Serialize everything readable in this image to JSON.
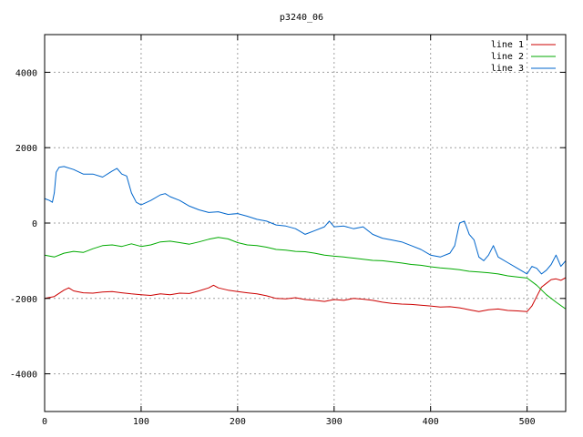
{
  "chart_data": {
    "type": "line",
    "title": "p3240_06",
    "xlabel": "",
    "ylabel": "",
    "xlim": [
      0,
      540
    ],
    "ylim": [
      -5000,
      5000
    ],
    "x_ticks": [
      "0",
      "100",
      "200",
      "300",
      "400",
      "500"
    ],
    "y_ticks": [
      "-4000",
      "-2000",
      "0",
      "2000",
      "4000"
    ],
    "grid": true,
    "legend_position": "top-right",
    "series": [
      {
        "name": "line 1",
        "color": "#cc0000",
        "points": [
          [
            0,
            -2000
          ],
          [
            10,
            -1950
          ],
          [
            20,
            -1780
          ],
          [
            25,
            -1720
          ],
          [
            30,
            -1800
          ],
          [
            40,
            -1850
          ],
          [
            50,
            -1860
          ],
          [
            60,
            -1830
          ],
          [
            70,
            -1820
          ],
          [
            80,
            -1850
          ],
          [
            90,
            -1880
          ],
          [
            100,
            -1900
          ],
          [
            110,
            -1920
          ],
          [
            120,
            -1880
          ],
          [
            130,
            -1900
          ],
          [
            140,
            -1860
          ],
          [
            150,
            -1870
          ],
          [
            160,
            -1800
          ],
          [
            170,
            -1720
          ],
          [
            175,
            -1650
          ],
          [
            180,
            -1720
          ],
          [
            190,
            -1780
          ],
          [
            200,
            -1820
          ],
          [
            210,
            -1850
          ],
          [
            220,
            -1880
          ],
          [
            230,
            -1930
          ],
          [
            240,
            -2000
          ],
          [
            250,
            -2010
          ],
          [
            260,
            -1980
          ],
          [
            270,
            -2030
          ],
          [
            280,
            -2050
          ],
          [
            290,
            -2080
          ],
          [
            300,
            -2030
          ],
          [
            310,
            -2050
          ],
          [
            320,
            -2000
          ],
          [
            330,
            -2020
          ],
          [
            340,
            -2050
          ],
          [
            350,
            -2100
          ],
          [
            360,
            -2130
          ],
          [
            370,
            -2150
          ],
          [
            380,
            -2160
          ],
          [
            390,
            -2180
          ],
          [
            400,
            -2200
          ],
          [
            410,
            -2230
          ],
          [
            420,
            -2220
          ],
          [
            430,
            -2250
          ],
          [
            440,
            -2300
          ],
          [
            450,
            -2350
          ],
          [
            460,
            -2300
          ],
          [
            470,
            -2280
          ],
          [
            480,
            -2320
          ],
          [
            490,
            -2330
          ],
          [
            500,
            -2350
          ],
          [
            505,
            -2200
          ],
          [
            510,
            -1950
          ],
          [
            515,
            -1700
          ],
          [
            520,
            -1600
          ],
          [
            525,
            -1500
          ],
          [
            530,
            -1480
          ],
          [
            535,
            -1520
          ],
          [
            540,
            -1450
          ]
        ]
      },
      {
        "name": "line 2",
        "color": "#00aa00",
        "points": [
          [
            0,
            -850
          ],
          [
            10,
            -900
          ],
          [
            20,
            -800
          ],
          [
            30,
            -750
          ],
          [
            40,
            -780
          ],
          [
            50,
            -680
          ],
          [
            60,
            -600
          ],
          [
            70,
            -580
          ],
          [
            80,
            -620
          ],
          [
            90,
            -550
          ],
          [
            100,
            -620
          ],
          [
            110,
            -580
          ],
          [
            120,
            -500
          ],
          [
            130,
            -480
          ],
          [
            140,
            -520
          ],
          [
            150,
            -560
          ],
          [
            160,
            -500
          ],
          [
            170,
            -430
          ],
          [
            180,
            -380
          ],
          [
            190,
            -420
          ],
          [
            200,
            -520
          ],
          [
            210,
            -580
          ],
          [
            220,
            -600
          ],
          [
            230,
            -640
          ],
          [
            240,
            -700
          ],
          [
            250,
            -720
          ],
          [
            260,
            -750
          ],
          [
            270,
            -760
          ],
          [
            280,
            -800
          ],
          [
            290,
            -850
          ],
          [
            300,
            -880
          ],
          [
            310,
            -900
          ],
          [
            320,
            -930
          ],
          [
            330,
            -960
          ],
          [
            340,
            -990
          ],
          [
            350,
            -1000
          ],
          [
            360,
            -1030
          ],
          [
            370,
            -1060
          ],
          [
            380,
            -1100
          ],
          [
            390,
            -1120
          ],
          [
            400,
            -1160
          ],
          [
            410,
            -1190
          ],
          [
            420,
            -1210
          ],
          [
            430,
            -1240
          ],
          [
            440,
            -1280
          ],
          [
            450,
            -1300
          ],
          [
            460,
            -1320
          ],
          [
            470,
            -1350
          ],
          [
            480,
            -1400
          ],
          [
            490,
            -1430
          ],
          [
            500,
            -1460
          ],
          [
            510,
            -1650
          ],
          [
            520,
            -1900
          ],
          [
            530,
            -2100
          ],
          [
            540,
            -2280
          ]
        ]
      },
      {
        "name": "line 3",
        "color": "#0066cc",
        "points": [
          [
            0,
            650
          ],
          [
            5,
            600
          ],
          [
            8,
            550
          ],
          [
            10,
            800
          ],
          [
            12,
            1350
          ],
          [
            15,
            1480
          ],
          [
            20,
            1500
          ],
          [
            30,
            1420
          ],
          [
            40,
            1300
          ],
          [
            50,
            1300
          ],
          [
            60,
            1220
          ],
          [
            70,
            1380
          ],
          [
            75,
            1450
          ],
          [
            80,
            1300
          ],
          [
            85,
            1250
          ],
          [
            90,
            800
          ],
          [
            95,
            550
          ],
          [
            100,
            480
          ],
          [
            110,
            600
          ],
          [
            120,
            750
          ],
          [
            125,
            780
          ],
          [
            130,
            700
          ],
          [
            140,
            600
          ],
          [
            150,
            450
          ],
          [
            160,
            350
          ],
          [
            170,
            280
          ],
          [
            180,
            300
          ],
          [
            190,
            230
          ],
          [
            200,
            250
          ],
          [
            210,
            180
          ],
          [
            220,
            100
          ],
          [
            230,
            50
          ],
          [
            240,
            -50
          ],
          [
            250,
            -80
          ],
          [
            260,
            -150
          ],
          [
            270,
            -300
          ],
          [
            280,
            -200
          ],
          [
            290,
            -100
          ],
          [
            295,
            50
          ],
          [
            300,
            -100
          ],
          [
            310,
            -80
          ],
          [
            320,
            -150
          ],
          [
            330,
            -100
          ],
          [
            340,
            -300
          ],
          [
            350,
            -400
          ],
          [
            360,
            -450
          ],
          [
            370,
            -500
          ],
          [
            380,
            -600
          ],
          [
            390,
            -700
          ],
          [
            400,
            -850
          ],
          [
            410,
            -900
          ],
          [
            420,
            -800
          ],
          [
            425,
            -600
          ],
          [
            430,
            0
          ],
          [
            435,
            50
          ],
          [
            440,
            -300
          ],
          [
            445,
            -450
          ],
          [
            450,
            -900
          ],
          [
            455,
            -1000
          ],
          [
            460,
            -850
          ],
          [
            465,
            -600
          ],
          [
            470,
            -900
          ],
          [
            480,
            -1050
          ],
          [
            490,
            -1200
          ],
          [
            500,
            -1350
          ],
          [
            505,
            -1150
          ],
          [
            510,
            -1200
          ],
          [
            515,
            -1350
          ],
          [
            520,
            -1250
          ],
          [
            525,
            -1100
          ],
          [
            530,
            -850
          ],
          [
            535,
            -1150
          ],
          [
            540,
            -1000
          ]
        ]
      }
    ]
  }
}
